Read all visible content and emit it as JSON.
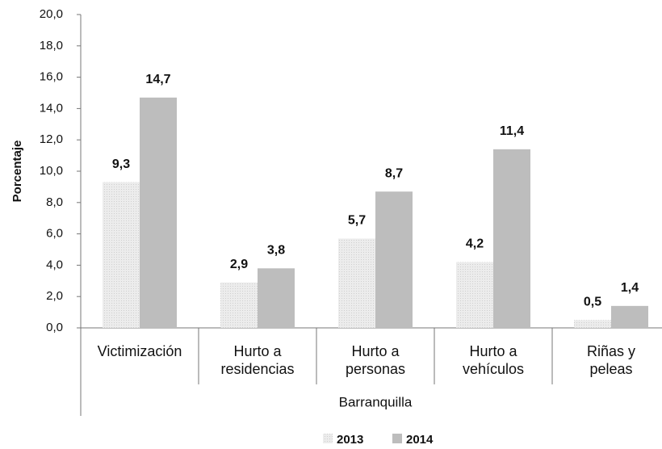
{
  "chart_data": {
    "type": "bar",
    "categories": [
      "Victimización",
      "Hurto a residencias",
      "Hurto a personas",
      "Hurto a vehículos",
      "Riñas y peleas"
    ],
    "series": [
      {
        "name": "2013",
        "color": "#e2e2e2",
        "values": [
          9.3,
          2.9,
          5.7,
          4.2,
          0.5
        ],
        "value_labels": [
          "9,3",
          "2,9",
          "5,7",
          "4,2",
          "0,5"
        ]
      },
      {
        "name": "2014",
        "color": "#bdbdbd",
        "values": [
          14.7,
          3.8,
          8.7,
          11.4,
          1.4
        ],
        "value_labels": [
          "14,7",
          "3,8",
          "8,7",
          "11,4",
          "1,4"
        ]
      }
    ],
    "ylabel": "Porcentaje",
    "xlabel": "Barranquilla",
    "ylim": [
      0,
      20
    ],
    "yticks": [
      {
        "value": 0,
        "label": "0,0"
      },
      {
        "value": 2,
        "label": "2,0"
      },
      {
        "value": 4,
        "label": "4,0"
      },
      {
        "value": 6,
        "label": "6,0"
      },
      {
        "value": 8,
        "label": "8,0"
      },
      {
        "value": 10,
        "label": "10,0"
      },
      {
        "value": 12,
        "label": "12,0"
      },
      {
        "value": 14,
        "label": "14,0"
      },
      {
        "value": 16,
        "label": "16,0"
      },
      {
        "value": 18,
        "label": "18,0"
      },
      {
        "value": 20,
        "label": "20,0"
      }
    ],
    "legend": "bottom"
  }
}
